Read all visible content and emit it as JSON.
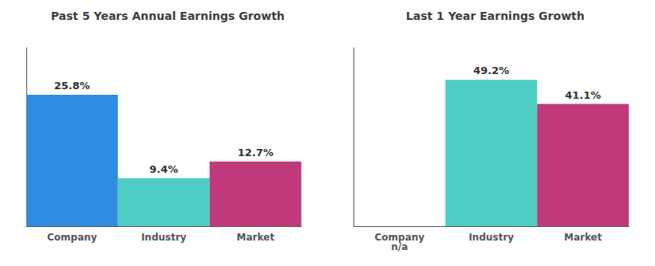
{
  "chart_data": [
    {
      "type": "bar",
      "title": "Past 5 Years Annual Earnings Growth",
      "categories": [
        "Company",
        "Industry",
        "Market"
      ],
      "values": [
        25.8,
        9.4,
        12.7
      ],
      "value_labels": [
        "25.8%",
        "9.4%",
        "12.7%"
      ],
      "colors": [
        "#2e8de0",
        "#4ecdc4",
        "#c0397a"
      ],
      "ylim": [
        0,
        35
      ],
      "grid": false,
      "data_labels": true,
      "tick_labels": "x"
    },
    {
      "type": "bar",
      "title": "Last 1 Year Earnings Growth",
      "categories": [
        "Company",
        "Industry",
        "Market"
      ],
      "values": [
        null,
        49.2,
        41.1
      ],
      "value_labels": [
        "n/a",
        "49.2%",
        "41.1%"
      ],
      "colors": [
        null,
        "#4ecdc4",
        "#c0397a"
      ],
      "ylim": [
        0,
        60
      ],
      "grid": false,
      "data_labels": true,
      "tick_labels": "x"
    }
  ]
}
